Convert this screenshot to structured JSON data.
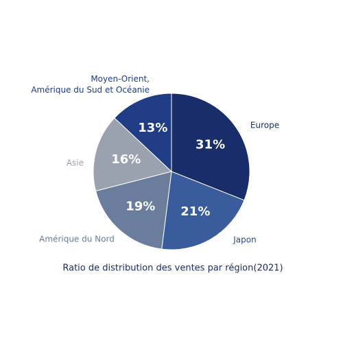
{
  "chart_data": {
    "type": "pie",
    "title": "Ratio de distribution des ventes par région(2021)",
    "categories": [
      "Europe",
      "Japon",
      "Amérique du Nord",
      "Asie",
      "Moyen-Orient,\nAmérique du Sud et Océanie"
    ],
    "values": [
      31,
      21,
      19,
      16,
      13
    ],
    "value_labels": [
      "31%",
      "21%",
      "19%",
      "16%",
      "13%"
    ],
    "colors": [
      "#182d69",
      "#3a5b9c",
      "#6b7d9c",
      "#9aa2b0",
      "#1f3c85"
    ],
    "label_colors": [
      "#182d69",
      "#2c4a8c",
      "#6b7d9c",
      "#9aa2b0",
      "#1f3c85"
    ],
    "title_color": "#1a2e6b"
  }
}
